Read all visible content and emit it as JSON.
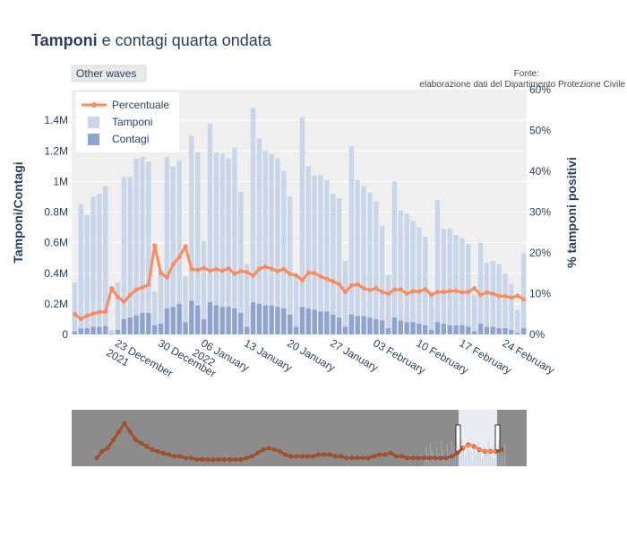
{
  "chart_data": {
    "type": "bar",
    "title_bold": "Tamponi",
    "title_rest": " e contagi quarta ondata",
    "button_label": "Other waves",
    "source_line1": "Fonte:",
    "source_line2": "elaborazione dati del Dipartimento Protezione Civile",
    "y_left_title": "Tamponi/Contagi",
    "y_right_title": "% tamponi positivi",
    "y_left_ticks": [
      "0",
      "0.2M",
      "0.4M",
      "0.6M",
      "0.8M",
      "1M",
      "1.2M",
      "1.4M"
    ],
    "y_left_max": 1600000,
    "y_right_ticks": [
      "0%",
      "10%",
      "20%",
      "30%",
      "40%",
      "50%",
      "60%"
    ],
    "y_right_max": 60,
    "x_ticks": [
      {
        "day": 7,
        "label": "23 December",
        "label2": "2021"
      },
      {
        "day": 14,
        "label": "30 December",
        "label2": ""
      },
      {
        "day": 21,
        "label": "06 January",
        "label2": "2022"
      },
      {
        "day": 28,
        "label": "13 January",
        "label2": ""
      },
      {
        "day": 35,
        "label": "20 January",
        "label2": ""
      },
      {
        "day": 42,
        "label": "27 January",
        "label2": ""
      },
      {
        "day": 49,
        "label": "03 February",
        "label2": ""
      },
      {
        "day": 56,
        "label": "10 February",
        "label2": ""
      },
      {
        "day": 63,
        "label": "17 February",
        "label2": ""
      },
      {
        "day": 70,
        "label": "24 February",
        "label2": ""
      }
    ],
    "legend": [
      {
        "key": "percentuale",
        "label": "Percentuale",
        "color": "#ff8a5c"
      },
      {
        "key": "tamponi",
        "label": "Tamponi",
        "color": "#c9d6ea"
      },
      {
        "key": "contagi",
        "label": "Contagi",
        "color": "#8fa3cf"
      }
    ],
    "x_start": "2021-12-16",
    "tamponi": [
      340000,
      850000,
      780000,
      900000,
      920000,
      970000,
      30000,
      340000,
      1030000,
      1030000,
      1150000,
      1160000,
      1130000,
      280000,
      420000,
      1160000,
      1100000,
      1140000,
      380000,
      1300000,
      1190000,
      610000,
      1380000,
      1190000,
      1180000,
      1150000,
      1220000,
      930000,
      460000,
      1480000,
      1280000,
      1200000,
      1180000,
      1150000,
      1070000,
      900000,
      390000,
      1420000,
      1100000,
      1040000,
      1040000,
      1010000,
      920000,
      890000,
      480000,
      1230000,
      1010000,
      970000,
      930000,
      870000,
      710000,
      390000,
      1000000,
      810000,
      790000,
      740000,
      700000,
      640000,
      280000,
      880000,
      690000,
      690000,
      650000,
      630000,
      590000,
      260000,
      600000,
      470000,
      480000,
      460000,
      400000,
      330000,
      160000,
      530000
    ],
    "contagi": [
      20000,
      40000,
      40000,
      50000,
      50000,
      55000,
      5000,
      30000,
      100000,
      110000,
      125000,
      140000,
      140000,
      60000,
      70000,
      170000,
      180000,
      200000,
      80000,
      220000,
      190000,
      100000,
      210000,
      190000,
      180000,
      180000,
      170000,
      140000,
      50000,
      210000,
      200000,
      190000,
      190000,
      180000,
      170000,
      130000,
      50000,
      180000,
      170000,
      160000,
      150000,
      150000,
      130000,
      110000,
      50000,
      130000,
      120000,
      120000,
      110000,
      100000,
      90000,
      40000,
      110000,
      90000,
      80000,
      80000,
      70000,
      60000,
      30000,
      80000,
      70000,
      60000,
      60000,
      60000,
      50000,
      20000,
      70000,
      50000,
      50000,
      40000,
      40000,
      30000,
      10000,
      40000
    ],
    "percentuale": [
      5.0,
      3.8,
      4.6,
      5.1,
      5.5,
      5.6,
      11.3,
      9.2,
      8.0,
      9.6,
      11.0,
      11.5,
      12.2,
      21.8,
      15.0,
      14.0,
      17.2,
      19.0,
      21.6,
      16.0,
      15.8,
      16.3,
      15.6,
      16.0,
      15.6,
      16.2,
      14.9,
      15.5,
      15.3,
      14.4,
      16.1,
      16.6,
      16.1,
      15.5,
      16.0,
      14.8,
      14.5,
      13.3,
      15.1,
      15.0,
      14.2,
      13.6,
      13.0,
      12.3,
      10.4,
      12.0,
      12.3,
      11.3,
      10.9,
      11.3,
      10.4,
      10.0,
      11.0,
      11.0,
      10.0,
      10.6,
      10.5,
      11.1,
      9.7,
      10.4,
      10.4,
      10.6,
      10.7,
      10.3,
      10.4,
      11.3,
      9.7,
      10.3,
      10.0,
      9.4,
      9.4,
      9.0,
      9.5,
      8.6
    ],
    "rangeslider_percentuale": [
      4,
      8,
      10,
      15,
      20,
      25,
      20,
      15,
      13,
      11,
      9,
      8,
      7,
      6,
      5,
      5,
      4,
      4,
      3,
      3,
      3,
      3,
      3,
      3,
      3,
      3,
      3,
      4,
      5,
      7,
      9,
      10,
      9,
      8,
      6,
      5,
      5,
      5,
      5,
      5,
      6,
      6,
      6,
      5,
      5,
      4,
      4,
      4,
      4,
      4,
      5,
      6,
      6,
      7,
      5,
      5,
      4,
      4,
      4,
      4,
      4,
      4,
      4,
      4,
      5,
      7,
      10,
      12,
      11,
      9,
      8,
      8,
      8,
      9
    ]
  }
}
